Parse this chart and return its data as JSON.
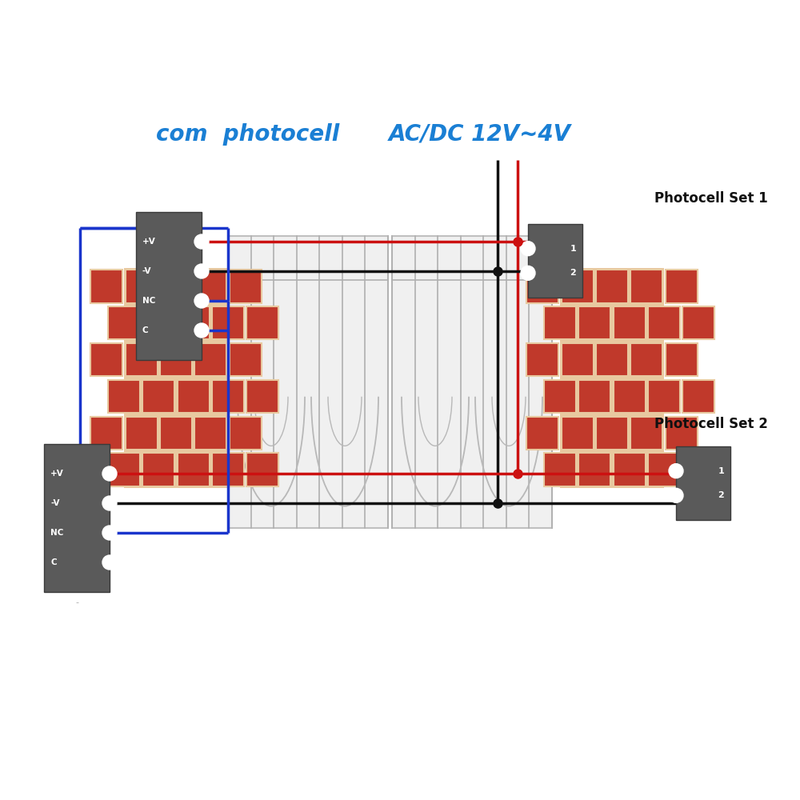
{
  "bg_color": "#ffffff",
  "blue_color": "#1a35cc",
  "red_color": "#cc1111",
  "black_color": "#111111",
  "brick_face": "#c0392b",
  "brick_mortar": "#e8c9a0",
  "text_blue": "#1a7fd4",
  "text_black": "#111111",
  "label_com": "com  photocell",
  "label_acdc": "AC/DC 12V~4V",
  "label_set1": "Photocell Set 1",
  "label_set2": "Photocell Set 2",
  "lw": 2.5,
  "fig_w": 10,
  "fig_h": 10,
  "dpi": 100
}
